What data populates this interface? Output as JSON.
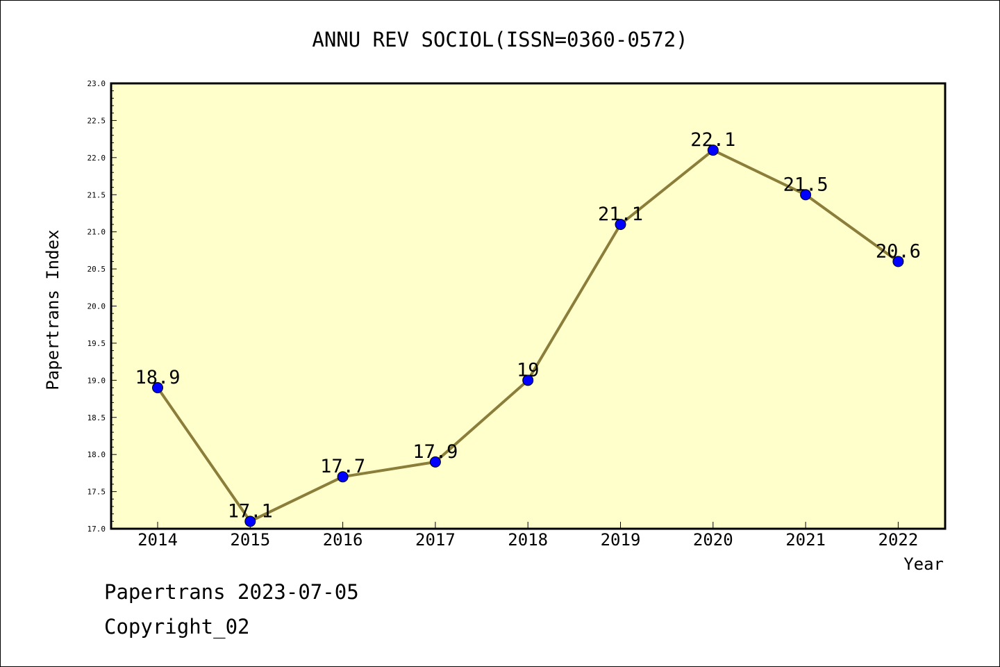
{
  "footer": {
    "source_line": "Papertrans 2023-07-05",
    "copyright_line": "Copyright_02"
  },
  "colors": {
    "plot_background": "#ffffcc",
    "line": "#8b7d3a",
    "marker": "#0000ff",
    "axis": "#000000"
  },
  "chart_data": {
    "type": "line",
    "title": "ANNU REV SOCIOL(ISSN=0360-0572)",
    "xlabel": "Year",
    "ylabel": "Papertrans Index",
    "categories": [
      "2014",
      "2015",
      "2016",
      "2017",
      "2018",
      "2019",
      "2020",
      "2021",
      "2022"
    ],
    "values": [
      18.9,
      17.1,
      17.7,
      17.9,
      19.0,
      21.1,
      22.1,
      21.5,
      20.6
    ],
    "data_labels": [
      "18.9",
      "17.1",
      "17.7",
      "17.9",
      "19",
      "21.1",
      "22.1",
      "21.5",
      "20.6"
    ],
    "ylim": [
      17.0,
      23.0
    ],
    "y_ticks": [
      "17.0",
      "17.5",
      "18.0",
      "18.5",
      "19.0",
      "19.5",
      "20.0",
      "20.5",
      "21.0",
      "21.5",
      "22.0",
      "22.5",
      "23.0"
    ],
    "grid": false,
    "legend": "none"
  }
}
